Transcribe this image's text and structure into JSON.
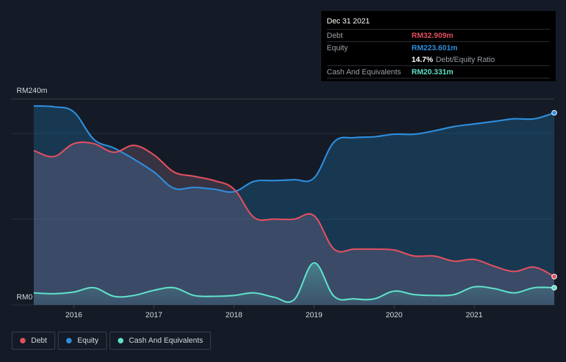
{
  "chart_data": {
    "type": "area",
    "title": "",
    "xlabel": "",
    "ylabel": "",
    "y_tick_labels": [
      "RM240m",
      "RM0"
    ],
    "x_tick_labels": [
      "2016",
      "2017",
      "2018",
      "2019",
      "2020",
      "2021"
    ],
    "xlim": [
      2015.5,
      2022.0
    ],
    "ylim": [
      0,
      240
    ],
    "grid": true,
    "legend_position": "bottom-left",
    "series": [
      {
        "name": "Debt",
        "color": "#e0505f",
        "x": [
          2015.5,
          2015.75,
          2016.0,
          2016.25,
          2016.5,
          2016.75,
          2017.0,
          2017.25,
          2017.5,
          2017.75,
          2018.0,
          2018.25,
          2018.5,
          2018.75,
          2019.0,
          2019.25,
          2019.5,
          2019.75,
          2020.0,
          2020.25,
          2020.5,
          2020.75,
          2021.0,
          2021.25,
          2021.5,
          2021.75,
          2022.0
        ],
        "values": [
          180,
          173,
          188,
          188,
          178,
          186,
          175,
          155,
          150,
          145,
          135,
          102,
          100,
          100,
          104,
          65,
          65,
          65,
          64,
          57,
          57,
          51,
          53,
          45,
          39,
          44,
          33
        ]
      },
      {
        "name": "Equity",
        "color": "#2d8fe0",
        "x": [
          2015.5,
          2015.75,
          2016.0,
          2016.25,
          2016.5,
          2016.75,
          2017.0,
          2017.25,
          2017.5,
          2017.75,
          2018.0,
          2018.25,
          2018.5,
          2018.75,
          2019.0,
          2019.25,
          2019.5,
          2019.75,
          2020.0,
          2020.25,
          2020.5,
          2020.75,
          2021.0,
          2021.25,
          2021.5,
          2021.75,
          2022.0
        ],
        "values": [
          232,
          231,
          225,
          193,
          183,
          170,
          155,
          136,
          137,
          135,
          132,
          144,
          145,
          146,
          148,
          190,
          195,
          196,
          199,
          199,
          203,
          208,
          211,
          214,
          217,
          217,
          224
        ]
      },
      {
        "name": "Cash And Equivalents",
        "color": "#5fe0c8",
        "x": [
          2015.5,
          2015.75,
          2016.0,
          2016.25,
          2016.5,
          2016.75,
          2017.0,
          2017.25,
          2017.5,
          2017.75,
          2018.0,
          2018.25,
          2018.5,
          2018.75,
          2019.0,
          2019.25,
          2019.5,
          2019.75,
          2020.0,
          2020.25,
          2020.5,
          2020.75,
          2021.0,
          2021.25,
          2021.5,
          2021.75,
          2022.0
        ],
        "values": [
          14,
          13,
          15,
          20,
          10,
          11,
          17,
          20,
          11,
          10,
          11,
          14,
          9,
          6,
          49,
          10,
          7,
          7,
          16,
          12,
          11,
          12,
          21,
          19,
          14,
          20,
          20
        ]
      }
    ]
  },
  "tooltip": {
    "date": "Dec 31 2021",
    "debt_label": "Debt",
    "debt_value": "RM32.909m",
    "equity_label": "Equity",
    "equity_value": "RM223.601m",
    "ratio_value": "14.7%",
    "ratio_label": "Debt/Equity Ratio",
    "cash_label": "Cash And Equivalents",
    "cash_value": "RM20.331m"
  },
  "legend": [
    {
      "label": "Debt",
      "color": "#e0505f"
    },
    {
      "label": "Equity",
      "color": "#2d8fe0"
    },
    {
      "label": "Cash And Equivalents",
      "color": "#5fe0c8"
    }
  ]
}
